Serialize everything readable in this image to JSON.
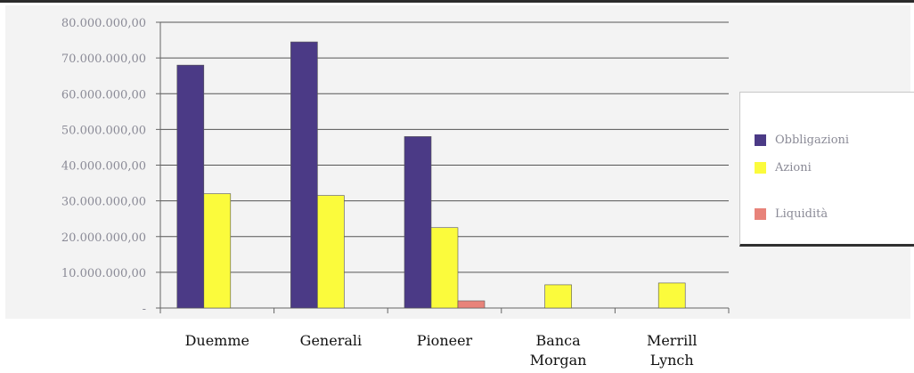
{
  "chart_data": {
    "type": "bar",
    "categories": [
      "Duemme",
      "Generali",
      "Pioneer",
      "Banca Morgan",
      "Merrill Lynch"
    ],
    "category_lines": [
      [
        "Duemme"
      ],
      [
        "Generali"
      ],
      [
        "Pioneer"
      ],
      [
        "Banca",
        "Morgan"
      ],
      [
        "Merrill",
        "Lynch"
      ]
    ],
    "series": [
      {
        "name": "Obbligazioni",
        "color": "#4b3a86",
        "values": [
          68000000,
          74500000,
          48000000,
          0,
          0
        ]
      },
      {
        "name": "Azioni",
        "color": "#fbfb3c",
        "values": [
          32000000,
          31500000,
          22500000,
          6500000,
          7000000
        ]
      },
      {
        "name": "Liquidità",
        "color": "#e8837a",
        "values": [
          0,
          0,
          2000000,
          0,
          0
        ]
      }
    ],
    "ylim": [
      0,
      80000000
    ],
    "yticks": [
      {
        "value": 0,
        "label": "-"
      },
      {
        "value": 10000000,
        "label": "10.000.000,00"
      },
      {
        "value": 20000000,
        "label": "20.000.000,00"
      },
      {
        "value": 30000000,
        "label": "30.000.000,00"
      },
      {
        "value": 40000000,
        "label": "40.000.000,00"
      },
      {
        "value": 50000000,
        "label": "50.000.000,00"
      },
      {
        "value": 60000000,
        "label": "60.000.000,00"
      },
      {
        "value": 70000000,
        "label": "70.000.000,00"
      },
      {
        "value": 80000000,
        "label": "80.000.000,00"
      }
    ],
    "grid": true,
    "legend_position": "right"
  }
}
